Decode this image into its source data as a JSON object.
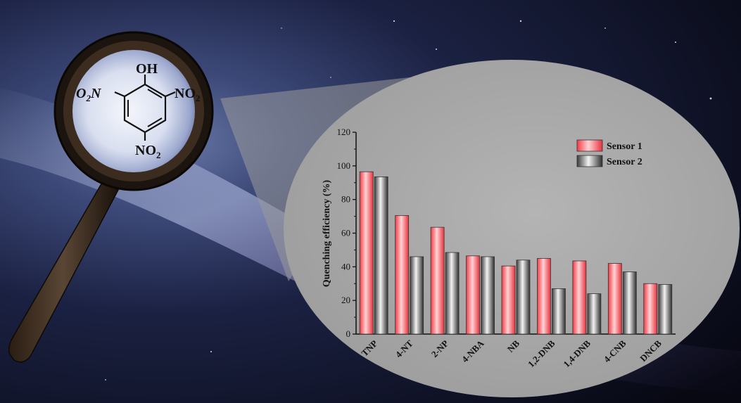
{
  "molecule": {
    "substituents": {
      "top": "OH",
      "left_prefix": "O",
      "left_sub": "2",
      "left_suffix": "N",
      "right_prefix": "NO",
      "right_sub": "2",
      "bottom_prefix": "NO",
      "bottom_sub": "2"
    }
  },
  "colors": {
    "sensor1": "#ff6b70",
    "sensor2": "#7a7a7a",
    "bubble": "#a9a9a9",
    "space_dark": "#0b0d1a",
    "magnifier_ring": "#1c140e"
  },
  "chart_data": {
    "type": "bar",
    "categories": [
      "TNP",
      "4-NT",
      "2-NP",
      "4-NBA",
      "NB",
      "1,2-DNB",
      "1,4-DNB",
      "4-CNB",
      "DNCB"
    ],
    "series": [
      {
        "name": "Sensor 1",
        "values": [
          96.5,
          70.5,
          63.5,
          46.5,
          40.5,
          45,
          43.5,
          42,
          30
        ]
      },
      {
        "name": "Sensor 2",
        "values": [
          93.5,
          46,
          48.5,
          46,
          44,
          27,
          24,
          37,
          29.5
        ]
      }
    ],
    "ylabel": "Quenching efficiency (%)",
    "xlabel": "",
    "ylim": [
      0,
      120
    ],
    "yticks": [
      "0",
      "20",
      "40",
      "60",
      "80",
      "100",
      "120"
    ],
    "legend_position": "top-right",
    "grid": false
  }
}
